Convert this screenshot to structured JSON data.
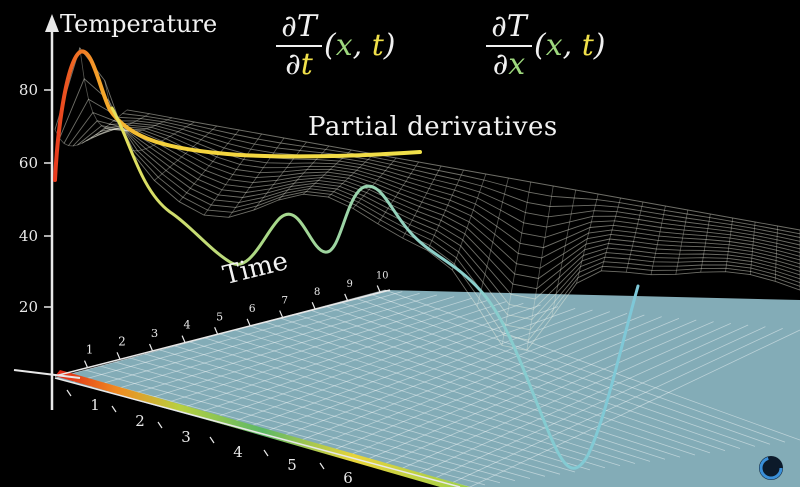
{
  "labels": {
    "temperature_axis": "Temperature",
    "time_axis": "Time",
    "title": "Partial derivatives"
  },
  "formulas": {
    "dt": {
      "numerator": "∂T",
      "denominator_prefix": "∂",
      "denominator_var": "t",
      "arg_open": "(",
      "arg_x": "x",
      "arg_sep": ", ",
      "arg_t": "t",
      "arg_close": ")"
    },
    "dx": {
      "numerator": "∂T",
      "denominator_prefix": "∂",
      "denominator_var": "x",
      "arg_open": "(",
      "arg_x": "x",
      "arg_sep": ", ",
      "arg_t": "t",
      "arg_close": ")"
    }
  },
  "temperature_ticks": [
    "20",
    "40",
    "60",
    "80"
  ],
  "x_ticks": [
    "1",
    "2",
    "3",
    "4",
    "5",
    "6"
  ],
  "time_ticks": [
    "1",
    "2",
    "3",
    "4",
    "5",
    "6",
    "7",
    "8",
    "9",
    "10"
  ],
  "colors": {
    "background": "#000000",
    "plane": "#a8dcea",
    "surface_grid": "#f4f4e4",
    "curve_t_hot": "#e83a1e",
    "curve_t_warm": "#f5d23c",
    "curve_x": "#9fd9c8",
    "gradient": [
      "#e02218",
      "#f5a623",
      "#9fcc3a",
      "#6abf6a",
      "#f0d23a",
      "#9fcc3a"
    ]
  }
}
